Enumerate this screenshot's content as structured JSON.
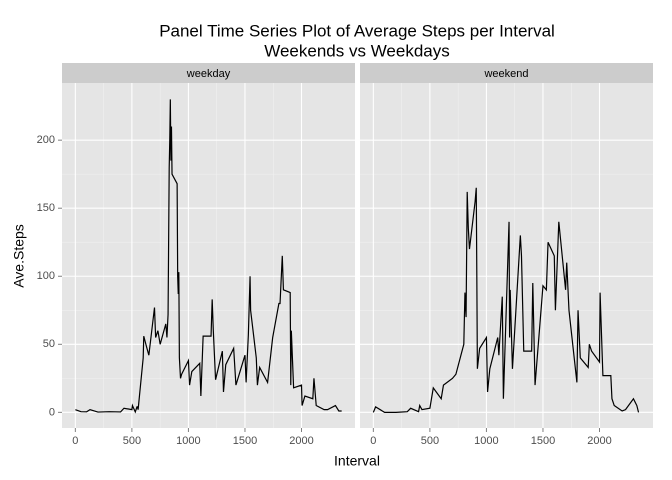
{
  "chart_data": {
    "type": "line",
    "title": "Panel Time Series Plot of Average Steps per Interval",
    "subtitle": "Weekends vs Weekdays",
    "xlabel": "Interval",
    "ylabel": "Ave.Steps",
    "color": "#000000",
    "grid": true,
    "xlim": [
      -118,
      2473
    ],
    "ylim": [
      -11.5,
      242
    ],
    "xticks": [
      0,
      500,
      1000,
      1500,
      2000
    ],
    "yticks": [
      0,
      50,
      100,
      150,
      200
    ],
    "panels": [
      {
        "name": "weekday",
        "x": [
          0,
          50,
          100,
          130,
          200,
          300,
          400,
          430,
          500,
          505,
          530,
          545,
          550,
          555,
          600,
          605,
          630,
          650,
          700,
          710,
          730,
          750,
          800,
          810,
          820,
          830,
          835,
          840,
          845,
          850,
          855,
          900,
          905,
          910,
          915,
          920,
          930,
          940,
          1000,
          1010,
          1030,
          1100,
          1110,
          1130,
          1200,
          1210,
          1220,
          1230,
          1240,
          1300,
          1310,
          1330,
          1400,
          1420,
          1500,
          1510,
          1530,
          1545,
          1550,
          1600,
          1610,
          1630,
          1700,
          1745,
          1800,
          1810,
          1830,
          1840,
          1900,
          1905,
          1910,
          1930,
          2000,
          2005,
          2030,
          2100,
          2110,
          2130,
          2200,
          2230,
          2300,
          2330,
          2355
        ],
        "values": [
          2,
          0.5,
          0.4,
          2,
          0.2,
          0.5,
          0.3,
          3,
          2,
          5,
          0.3,
          4,
          4,
          2,
          40,
          56,
          48,
          42,
          77,
          55,
          60,
          50,
          65,
          55,
          72,
          180,
          200,
          230,
          185,
          210,
          175,
          168,
          100,
          87,
          103,
          40,
          25,
          28,
          38,
          20,
          30,
          36,
          12,
          56,
          56,
          83,
          60,
          42,
          24,
          45,
          15,
          35,
          47,
          20,
          42,
          22,
          57,
          100,
          75,
          40,
          20,
          33,
          22,
          55,
          80,
          80,
          115,
          90,
          88,
          20,
          60,
          18,
          20,
          5,
          12,
          10,
          25,
          5,
          2,
          2,
          5,
          1,
          1
        ]
      },
      {
        "name": "weekend",
        "x": [
          0,
          20,
          100,
          200,
          300,
          330,
          400,
          410,
          430,
          500,
          530,
          600,
          620,
          700,
          730,
          800,
          810,
          820,
          830,
          840,
          850,
          900,
          910,
          915,
          920,
          940,
          1000,
          1010,
          1030,
          1100,
          1110,
          1140,
          1150,
          1200,
          1205,
          1210,
          1230,
          1300,
          1310,
          1330,
          1400,
          1410,
          1430,
          1500,
          1530,
          1545,
          1600,
          1610,
          1640,
          1700,
          1710,
          1730,
          1800,
          1810,
          1830,
          1900,
          1910,
          1930,
          2000,
          2005,
          2030,
          2100,
          2110,
          2130,
          2200,
          2230,
          2300,
          2330,
          2345
        ],
        "values": [
          0,
          4,
          0,
          0,
          0.5,
          3,
          0.5,
          5,
          2,
          3,
          18,
          10,
          20,
          25,
          28,
          50,
          88,
          70,
          162,
          135,
          120,
          155,
          165,
          100,
          32,
          47,
          55,
          15,
          32,
          55,
          42,
          85,
          10,
          140,
          55,
          90,
          32,
          130,
          115,
          45,
          45,
          95,
          20,
          93,
          90,
          125,
          115,
          75,
          140,
          90,
          110,
          75,
          22,
          75,
          40,
          33,
          50,
          45,
          37,
          88,
          27,
          27,
          10,
          5,
          1,
          2,
          10,
          5,
          0
        ]
      }
    ]
  }
}
